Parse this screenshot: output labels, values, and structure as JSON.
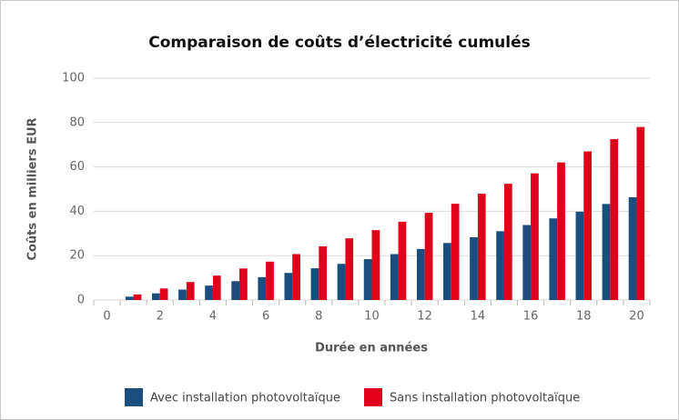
{
  "chart_data": {
    "type": "bar",
    "title": "Comparaison de coûts d’électricité cumulés",
    "xlabel": "Durée en années",
    "ylabel": "Coûts en milliers EUR",
    "categories": [
      0,
      null,
      2,
      null,
      4,
      null,
      6,
      null,
      8,
      null,
      10,
      null,
      12,
      null,
      14,
      null,
      16,
      null,
      18,
      null,
      20
    ],
    "series": [
      {
        "name": "Avec installation photovoltaïque",
        "color": "#1a4e7f",
        "values": [
          0,
          1.5,
          3,
          4.7,
          6.5,
          8.5,
          10.3,
          12.2,
          14.3,
          16.3,
          18.4,
          20.7,
          23,
          25.7,
          28.3,
          31,
          33.8,
          36.8,
          39.8,
          43.3,
          46.3
        ]
      },
      {
        "name": "Sans installation photovoltaïque",
        "color": "#e0001b",
        "values": [
          0,
          2.5,
          5.2,
          8.1,
          11,
          14.2,
          17.3,
          20.7,
          24.2,
          27.8,
          31.5,
          35.3,
          39.3,
          43.4,
          47.9,
          52.4,
          57.1,
          62,
          67,
          72.5,
          78
        ]
      }
    ],
    "ylim": [
      0,
      100
    ],
    "yticks": [
      0,
      20,
      40,
      60,
      80,
      100
    ],
    "grid": true,
    "legend": "bottom"
  }
}
